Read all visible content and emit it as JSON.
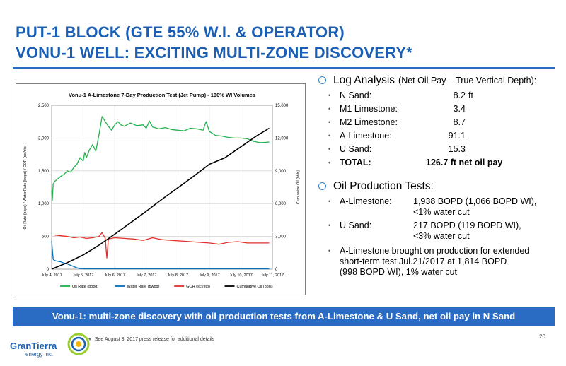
{
  "slide": {
    "title_line1": "PUT-1 BLOCK (GTE 55% W.I. & OPERATOR)",
    "title_line2": "VONU-1 WELL: EXCITING MULTI-ZONE DISCOVERY*",
    "banner": "Vonu-1: multi-zone discovery with oil production tests from A-Limestone & U Sand, net oil pay in N Sand",
    "footnote_mark": "*",
    "footnote": "See August 3, 2017 press release for additional details",
    "page_number": "20",
    "logo_name": "GranTierra",
    "logo_sub": "energy inc."
  },
  "log_analysis": {
    "heading": "Log Analysis",
    "subheading": "(Net Oil Pay – True Vertical Depth):",
    "rows": [
      {
        "zone": "N Sand:",
        "value": "8.2",
        "unit": "ft"
      },
      {
        "zone": "M1 Limestone:",
        "value": "3.4",
        "unit": ""
      },
      {
        "zone": "M2 Limestone:",
        "value": "8.7",
        "unit": ""
      },
      {
        "zone": "A-Limestone:",
        "value": "91.1",
        "unit": ""
      },
      {
        "zone": "U Sand:",
        "value": "15.3",
        "unit": ""
      }
    ],
    "total_label": "TOTAL:",
    "total_value": "126.7 ft net oil pay"
  },
  "production_tests": {
    "heading": "Oil Production Tests:",
    "a_limestone_label": "A-Limestone:",
    "a_limestone_value": "1,938 BOPD (1,066 BOPD WI),",
    "a_limestone_wc": "<1% water cut",
    "u_sand_label": "U Sand:",
    "u_sand_value": "217 BOPD (119 BOPD WI),",
    "u_sand_wc": "<3% water cut",
    "note_line1": "A-Limestone brought on production for extended",
    "note_line2": "short-term test Jul.21/2017 at 1,814 BOPD",
    "note_line3": "(998 BOPD WI), 1% water cut"
  },
  "chart_data": {
    "type": "line",
    "title": "Vonu-1 A-Limestone 7-Day Production Test (Jet Pump) - 100% WI Volumes",
    "ylabel": "Oil Rate (bopd) / Water Rate (bwpd) / GOR (scf/stb)",
    "y2label": "Cumulative Oil (bbls)",
    "x_tick_labels": [
      "July 4, 2017",
      "July 5, 2017",
      "July 6, 2017",
      "July 7, 2017",
      "July 8, 2017",
      "July 9, 2017",
      "July 10, 2017",
      "July 11, 2017"
    ],
    "x_range_days": [
      0,
      7
    ],
    "ylim": [
      0,
      2500
    ],
    "y_ticks": [
      "0",
      "500",
      "1,000",
      "1,500",
      "2,000",
      "2,500"
    ],
    "y2lim": [
      0,
      15000
    ],
    "y2_ticks": [
      "0",
      "3,000",
      "6,000",
      "9,000",
      "12,000",
      "15,000"
    ],
    "grid": true,
    "legend_position": "bottom",
    "series": [
      {
        "name": "Oil Rate (bopd)",
        "color": "#22b14c",
        "axis": "left",
        "x": [
          0,
          0.02,
          0.05,
          0.1,
          0.2,
          0.3,
          0.4,
          0.5,
          0.6,
          0.7,
          0.8,
          0.9,
          1.0,
          1.05,
          1.1,
          1.2,
          1.3,
          1.4,
          1.5,
          1.6,
          1.7,
          1.8,
          1.9,
          2.0,
          2.1,
          2.2,
          2.3,
          2.5,
          2.7,
          2.9,
          3.0,
          3.1,
          3.2,
          3.4,
          3.6,
          3.8,
          4.0,
          4.2,
          4.4,
          4.6,
          4.8,
          4.9,
          5.0,
          5.2,
          5.4,
          5.6,
          5.8,
          6.0,
          6.2,
          6.4,
          6.6,
          6.8,
          6.9
        ],
        "values": [
          1200,
          1050,
          1300,
          1340,
          1380,
          1420,
          1450,
          1500,
          1480,
          1550,
          1600,
          1700,
          1650,
          1780,
          1700,
          1820,
          1900,
          1800,
          2050,
          2330,
          2250,
          2180,
          2120,
          2200,
          2250,
          2200,
          2180,
          2230,
          2190,
          2200,
          2150,
          2260,
          2170,
          2140,
          2160,
          2130,
          2120,
          2110,
          2150,
          2140,
          2120,
          2250,
          2100,
          2040,
          2030,
          2010,
          2000,
          2000,
          1990,
          1950,
          1930,
          1935,
          1940
        ]
      },
      {
        "name": "Water Rate (bwpd)",
        "color": "#0070c0",
        "axis": "left",
        "x": [
          0,
          0.05,
          0.1,
          0.2,
          0.3,
          0.4,
          0.5,
          0.6,
          0.7,
          0.8,
          0.9,
          1.0,
          1.5,
          2.0,
          3.0,
          4.0,
          5.0,
          6.0,
          6.9
        ],
        "values": [
          430,
          150,
          130,
          120,
          110,
          90,
          80,
          60,
          40,
          20,
          10,
          5,
          5,
          5,
          5,
          5,
          5,
          5,
          5
        ]
      },
      {
        "name": "GOR (scf/stb)",
        "color": "#e0302a",
        "axis": "left",
        "x": [
          0.1,
          0.3,
          0.5,
          0.7,
          0.9,
          1.1,
          1.3,
          1.5,
          1.6,
          1.7,
          1.75,
          1.8,
          1.9,
          2.0,
          2.3,
          2.6,
          2.9,
          3.2,
          3.5,
          3.8,
          4.1,
          4.4,
          4.7,
          5.0,
          5.3,
          5.6,
          5.9,
          6.2,
          6.5,
          6.8,
          6.9
        ],
        "values": [
          520,
          510,
          500,
          480,
          490,
          470,
          480,
          500,
          560,
          470,
          170,
          460,
          470,
          480,
          470,
          460,
          440,
          480,
          450,
          440,
          430,
          420,
          410,
          400,
          380,
          410,
          420,
          400,
          400,
          400,
          400
        ]
      },
      {
        "name": "Cumulative Oil (bbls)",
        "color": "#000000",
        "axis": "right",
        "x": [
          0,
          0.5,
          1.0,
          1.5,
          2.0,
          2.5,
          3.0,
          3.5,
          4.0,
          4.5,
          5.0,
          5.5,
          6.0,
          6.5,
          6.9
        ],
        "values": [
          0,
          600,
          1300,
          2200,
          3200,
          4250,
          5300,
          6400,
          7450,
          8500,
          9600,
          10200,
          11200,
          12200,
          12900
        ]
      }
    ]
  }
}
